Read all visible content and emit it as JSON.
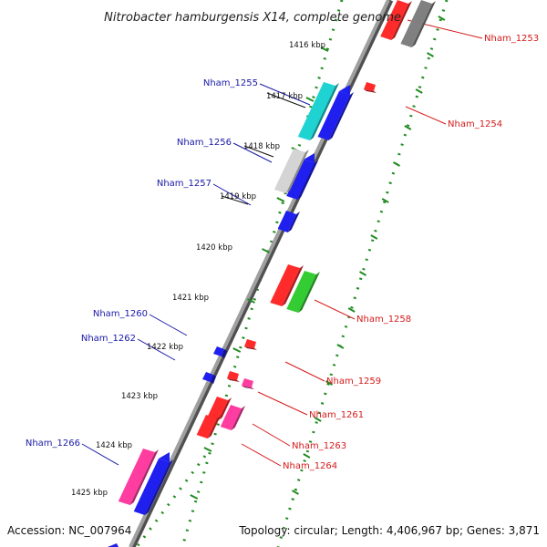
{
  "header": {
    "title": "Nitrobacter hamburgensis X14, complete genome"
  },
  "footer": {
    "accession": "Accession: NC_007964",
    "topology": "Topology: circular; Length: 4,406,967 bp; Genes: 3,871"
  },
  "colors": {
    "backbone": "#808080",
    "dots": "#228b22",
    "forward_label": "#1a1aa8",
    "reverse_label": "#d61a1a"
  },
  "kbp_ticks": [
    "1416 kbp",
    "1417 kbp",
    "1418 kbp",
    "1419 kbp",
    "1420 kbp",
    "1421 kbp",
    "1422 kbp",
    "1423 kbp",
    "1424 kbp",
    "1425 kbp"
  ],
  "gene_labels": {
    "left": [
      "Nham_1255",
      "Nham_1256",
      "Nham_1257",
      "Nham_1260",
      "Nham_1262",
      "Nham_1266"
    ],
    "right": [
      "Nham_1253",
      "Nham_1254",
      "Nham_1258",
      "Nham_1259",
      "Nham_1261",
      "Nham_1263",
      "Nham_1264"
    ]
  },
  "genes": [
    {
      "color": "#ff2b2b"
    },
    {
      "color": "#808080"
    },
    {
      "color": "#1f1ff0"
    },
    {
      "color": "#1fd3d3"
    },
    {
      "color": "#1f1ff0"
    },
    {
      "color": "#d4d4d4"
    },
    {
      "color": "#1f1ff0"
    },
    {
      "color": "#1f1ff0"
    },
    {
      "color": "#ff2b2b"
    },
    {
      "color": "#33cc33"
    },
    {
      "color": "#ff2b2b"
    },
    {
      "color": "#1f1ff0"
    },
    {
      "color": "#1f1ff0"
    },
    {
      "color": "#ff2b2b"
    },
    {
      "color": "#ff3ca0"
    },
    {
      "color": "#ff2b2b"
    },
    {
      "color": "#ff2b2b"
    },
    {
      "color": "#ff3ca0"
    },
    {
      "color": "#ff3ca0"
    },
    {
      "color": "#1f1ff0"
    },
    {
      "color": "#1f1ff0"
    }
  ]
}
